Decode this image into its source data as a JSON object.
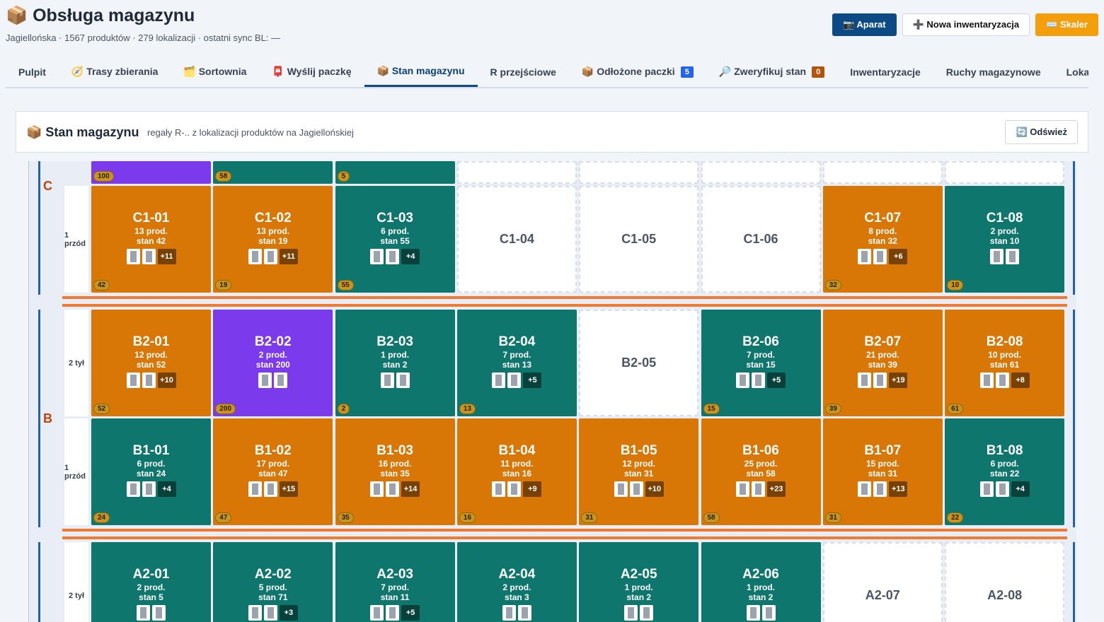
{
  "header": {
    "title": "📦 Obsługa magazynu",
    "subtitle": "Jagiellońska · 1567 produktów · 279 lokalizacji · ostatni sync BL: —",
    "buttons": [
      {
        "label": "📷 Aparat",
        "color": "#0b4a85"
      },
      {
        "label": "➕ Nowa inwentaryzacja",
        "color": "#ffffff"
      },
      {
        "label": "⌨️ Skaler",
        "color": "#f59e0b"
      }
    ]
  },
  "tabs": [
    {
      "label": "Pulpit"
    },
    {
      "label": "🧭 Trasy zbierania"
    },
    {
      "label": "🗂️ Sortownia"
    },
    {
      "label": "📮 Wyślij paczkę"
    },
    {
      "label": "📦 Stan magazynu",
      "active": true
    },
    {
      "label": "R przejściowe"
    },
    {
      "label": "📦 Odłożone paczki",
      "badge": "5",
      "badge_color": "#2563eb"
    },
    {
      "label": "🔎 Zweryfikuj stan",
      "badge": "0",
      "badge_color": "#b45309"
    },
    {
      "label": "Inwentaryzacje"
    },
    {
      "label": "Ruchy magazynowe"
    },
    {
      "label": "Lokalizacje"
    }
  ],
  "panel": {
    "title": "📦 Stan magazynu",
    "subtitle": "regały R-.. z lokalizacji produktów na Jagiellońskiej",
    "button": "🔄 Odśwież"
  },
  "grid": {
    "sections": [
      {
        "label": "C",
        "rows": [
          {
            "cells": [
              {
                "badge": "100",
                "color": "#7c3aed"
              },
              {
                "badge": "58",
                "color": "#0f766e"
              },
              {
                "badge": "5",
                "color": "#0f766e"
              },
              {
                "color": "#ffffff"
              },
              {
                "color": "#ffffff"
              },
              {
                "color": "#ffffff"
              },
              {
                "color": "#ffffff"
              },
              {
                "color": "#ffffff"
              }
            ]
          },
          {
            "label": "1 przód",
            "cells": [
              {
                "code": "C1-01",
                "prod": "13 prod.",
                "stan": "stan 42",
                "more": "+11",
                "badge": "42",
                "color": "#d97706"
              },
              {
                "code": "C1-02",
                "prod": "13 prod.",
                "stan": "stan 19",
                "more": "+11",
                "badge": "19",
                "color": "#d97706"
              },
              {
                "code": "C1-03",
                "prod": "6 prod.",
                "stan": "stan 55",
                "more": "+4",
                "badge": "55",
                "color": "#0f766e"
              },
              {
                "code": "C1-04"
              },
              {
                "code": "C1-05"
              },
              {
                "code": "C1-06"
              },
              {
                "code": "C1-07",
                "prod": "8 prod.",
                "stan": "stan 32",
                "more": "+6",
                "badge": "32",
                "color": "#d97706"
              },
              {
                "code": "C1-08",
                "prod": "2 prod.",
                "stan": "stan 10",
                "badge": "10",
                "color": "#0f766e"
              }
            ]
          }
        ]
      },
      {
        "label": "B",
        "rows": [
          {
            "label": "2 tył",
            "cells": [
              {
                "code": "B2-01",
                "prod": "12 prod.",
                "stan": "stan 52",
                "more": "+10",
                "badge": "52",
                "color": "#d97706"
              },
              {
                "code": "B2-02",
                "prod": "2 prod.",
                "stan": "stan 200",
                "badge": "200",
                "color": "#7c3aed"
              },
              {
                "code": "B2-03",
                "prod": "1 prod.",
                "stan": "stan 2",
                "badge": "2",
                "color": "#0f766e"
              },
              {
                "code": "B2-04",
                "prod": "7 prod.",
                "stan": "stan 13",
                "more": "+5",
                "badge": "13",
                "color": "#0f766e"
              },
              {
                "code": "B2-05"
              },
              {
                "code": "B2-06",
                "prod": "7 prod.",
                "stan": "stan 15",
                "more": "+5",
                "badge": "15",
                "color": "#0f766e"
              },
              {
                "code": "B2-07",
                "prod": "21 prod.",
                "stan": "stan 39",
                "more": "+19",
                "badge": "39",
                "color": "#d97706"
              },
              {
                "code": "B2-08",
                "prod": "10 prod.",
                "stan": "stan 61",
                "more": "+8",
                "badge": "61",
                "color": "#d97706"
              }
            ]
          },
          {
            "label": "1 przód",
            "cells": [
              {
                "code": "B1-01",
                "prod": "6 prod.",
                "stan": "stan 24",
                "more": "+4",
                "badge": "24",
                "color": "#0f766e"
              },
              {
                "code": "B1-02",
                "prod": "17 prod.",
                "stan": "stan 47",
                "more": "+15",
                "badge": "47",
                "color": "#d97706"
              },
              {
                "code": "B1-03",
                "prod": "16 prod.",
                "stan": "stan 35",
                "more": "+14",
                "badge": "35",
                "color": "#d97706"
              },
              {
                "code": "B1-04",
                "prod": "11 prod.",
                "stan": "stan 16",
                "more": "+9",
                "badge": "16",
                "color": "#d97706"
              },
              {
                "code": "B1-05",
                "prod": "12 prod.",
                "stan": "stan 31",
                "more": "+10",
                "badge": "31",
                "color": "#d97706"
              },
              {
                "code": "B1-06",
                "prod": "25 prod.",
                "stan": "stan 58",
                "more": "+23",
                "badge": "58",
                "color": "#d97706"
              },
              {
                "code": "B1-07",
                "prod": "15 prod.",
                "stan": "stan 31",
                "more": "+13",
                "badge": "31",
                "color": "#d97706"
              },
              {
                "code": "B1-08",
                "prod": "6 prod.",
                "stan": "stan 22",
                "more": "+4",
                "badge": "22",
                "color": "#0f766e"
              }
            ]
          }
        ]
      },
      {
        "rows": [
          {
            "label": "2 tył",
            "cells": [
              {
                "code": "A2-01",
                "prod": "2 prod.",
                "stan": "stan 5",
                "color": "#0f766e"
              },
              {
                "code": "A2-02",
                "prod": "5 prod.",
                "stan": "stan 71",
                "more": "+3",
                "color": "#0f766e"
              },
              {
                "code": "A2-03",
                "prod": "7 prod.",
                "stan": "stan 11",
                "more": "+5",
                "color": "#0f766e"
              },
              {
                "code": "A2-04",
                "prod": "2 prod.",
                "stan": "stan 3",
                "color": "#0f766e"
              },
              {
                "code": "A2-05",
                "prod": "1 prod.",
                "stan": "stan 2",
                "color": "#0f766e"
              },
              {
                "code": "A2-06",
                "prod": "1 prod.",
                "stan": "stan 2",
                "color": "#0f766e"
              },
              {
                "code": "A2-07"
              },
              {
                "code": "A2-08"
              }
            ]
          }
        ]
      }
    ]
  }
}
